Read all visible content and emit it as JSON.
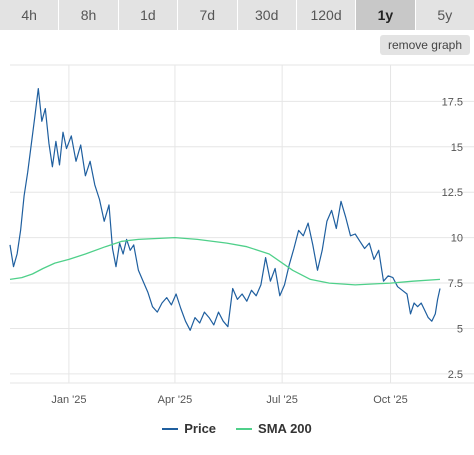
{
  "tabs": [
    {
      "label": "4h",
      "active": false
    },
    {
      "label": "8h",
      "active": false
    },
    {
      "label": "1d",
      "active": false
    },
    {
      "label": "7d",
      "active": false
    },
    {
      "label": "30d",
      "active": false
    },
    {
      "label": "120d",
      "active": false
    },
    {
      "label": "1y",
      "active": true
    },
    {
      "label": "5y",
      "active": false
    }
  ],
  "remove_graph_label": "remove graph",
  "colors": {
    "price": "#1f5f9f",
    "sma": "#4fd08a",
    "grid": "#e6e6e6",
    "axis_text": "#555555"
  },
  "chart_data": {
    "type": "line",
    "title": "",
    "xlabel": "",
    "ylabel": "",
    "y_axis_position": "right",
    "ylim": [
      2.0,
      19.5
    ],
    "y_ticks": [
      2.5,
      5,
      7.5,
      10,
      12.5,
      15,
      17.5
    ],
    "y_tick_labels": [
      "2.5",
      "5",
      "7.5",
      "10",
      "12.5",
      "15",
      "17.5"
    ],
    "x_ticks": [
      {
        "label": "Jan '25",
        "x": "2025-01-01"
      },
      {
        "label": "Apr '25",
        "x": "2025-04-01"
      },
      {
        "label": "Jul '25",
        "x": "2025-07-01"
      },
      {
        "label": "Oct '25",
        "x": "2025-10-01"
      }
    ],
    "x_range": [
      "2024-11-12",
      "2025-11-12"
    ],
    "grid": true,
    "legend_position": "bottom",
    "series": [
      {
        "name": "Price",
        "points": [
          [
            "2024-11-12",
            9.6
          ],
          [
            "2024-11-15",
            8.4
          ],
          [
            "2024-11-18",
            9.1
          ],
          [
            "2024-11-21",
            10.4
          ],
          [
            "2024-11-24",
            12.3
          ],
          [
            "2024-11-27",
            13.6
          ],
          [
            "2024-11-30",
            15.1
          ],
          [
            "2024-12-03",
            16.6
          ],
          [
            "2024-12-06",
            18.2
          ],
          [
            "2024-12-09",
            16.4
          ],
          [
            "2024-12-12",
            17.1
          ],
          [
            "2024-12-15",
            15.2
          ],
          [
            "2024-12-18",
            13.9
          ],
          [
            "2024-12-21",
            15.3
          ],
          [
            "2024-12-24",
            14.0
          ],
          [
            "2024-12-27",
            15.8
          ],
          [
            "2024-12-30",
            14.9
          ],
          [
            "2025-01-03",
            15.6
          ],
          [
            "2025-01-07",
            14.2
          ],
          [
            "2025-01-11",
            15.1
          ],
          [
            "2025-01-15",
            13.4
          ],
          [
            "2025-01-19",
            14.2
          ],
          [
            "2025-01-23",
            12.9
          ],
          [
            "2025-01-27",
            12.1
          ],
          [
            "2025-01-31",
            10.9
          ],
          [
            "2025-02-04",
            11.8
          ],
          [
            "2025-02-07",
            9.4
          ],
          [
            "2025-02-10",
            8.4
          ],
          [
            "2025-02-13",
            9.7
          ],
          [
            "2025-02-16",
            9.1
          ],
          [
            "2025-02-19",
            9.9
          ],
          [
            "2025-02-22",
            9.3
          ],
          [
            "2025-02-25",
            9.6
          ],
          [
            "2025-03-01",
            8.2
          ],
          [
            "2025-03-05",
            7.6
          ],
          [
            "2025-03-09",
            7.0
          ],
          [
            "2025-03-13",
            6.2
          ],
          [
            "2025-03-17",
            5.9
          ],
          [
            "2025-03-21",
            6.4
          ],
          [
            "2025-03-25",
            6.7
          ],
          [
            "2025-03-29",
            6.3
          ],
          [
            "2025-04-02",
            6.9
          ],
          [
            "2025-04-06",
            6.1
          ],
          [
            "2025-04-10",
            5.4
          ],
          [
            "2025-04-14",
            4.9
          ],
          [
            "2025-04-18",
            5.6
          ],
          [
            "2025-04-22",
            5.3
          ],
          [
            "2025-04-26",
            5.9
          ],
          [
            "2025-04-30",
            5.6
          ],
          [
            "2025-05-04",
            5.2
          ],
          [
            "2025-05-08",
            5.9
          ],
          [
            "2025-05-12",
            5.4
          ],
          [
            "2025-05-16",
            5.1
          ],
          [
            "2025-05-20",
            7.2
          ],
          [
            "2025-05-24",
            6.6
          ],
          [
            "2025-05-28",
            6.9
          ],
          [
            "2025-06-01",
            6.5
          ],
          [
            "2025-06-05",
            7.1
          ],
          [
            "2025-06-09",
            6.8
          ],
          [
            "2025-06-13",
            7.4
          ],
          [
            "2025-06-17",
            8.9
          ],
          [
            "2025-06-21",
            7.6
          ],
          [
            "2025-06-25",
            8.3
          ],
          [
            "2025-06-29",
            6.8
          ],
          [
            "2025-07-03",
            7.4
          ],
          [
            "2025-07-07",
            8.5
          ],
          [
            "2025-07-11",
            9.4
          ],
          [
            "2025-07-15",
            10.4
          ],
          [
            "2025-07-19",
            10.1
          ],
          [
            "2025-07-23",
            10.8
          ],
          [
            "2025-07-27",
            9.6
          ],
          [
            "2025-07-31",
            8.2
          ],
          [
            "2025-08-04",
            9.3
          ],
          [
            "2025-08-08",
            10.9
          ],
          [
            "2025-08-12",
            11.5
          ],
          [
            "2025-08-16",
            10.5
          ],
          [
            "2025-08-20",
            12.0
          ],
          [
            "2025-08-24",
            11.1
          ],
          [
            "2025-08-28",
            10.1
          ],
          [
            "2025-09-01",
            10.2
          ],
          [
            "2025-09-05",
            9.8
          ],
          [
            "2025-09-09",
            9.4
          ],
          [
            "2025-09-13",
            9.7
          ],
          [
            "2025-09-17",
            8.8
          ],
          [
            "2025-09-21",
            9.3
          ],
          [
            "2025-09-25",
            7.6
          ],
          [
            "2025-09-29",
            7.9
          ],
          [
            "2025-10-03",
            7.8
          ],
          [
            "2025-10-07",
            7.3
          ],
          [
            "2025-10-11",
            7.1
          ],
          [
            "2025-10-15",
            6.9
          ],
          [
            "2025-10-18",
            5.8
          ],
          [
            "2025-10-21",
            6.4
          ],
          [
            "2025-10-24",
            6.2
          ],
          [
            "2025-10-27",
            6.4
          ],
          [
            "2025-10-30",
            6.0
          ],
          [
            "2025-11-02",
            5.6
          ],
          [
            "2025-11-05",
            5.4
          ],
          [
            "2025-11-08",
            5.8
          ],
          [
            "2025-11-10",
            6.6
          ],
          [
            "2025-11-12",
            7.2
          ]
        ]
      },
      {
        "name": "SMA 200",
        "points": [
          [
            "2024-11-12",
            7.7
          ],
          [
            "2024-11-22",
            7.8
          ],
          [
            "2024-12-01",
            8.0
          ],
          [
            "2024-12-10",
            8.3
          ],
          [
            "2024-12-20",
            8.6
          ],
          [
            "2025-01-01",
            8.8
          ],
          [
            "2025-01-15",
            9.1
          ],
          [
            "2025-02-01",
            9.5
          ],
          [
            "2025-02-15",
            9.8
          ],
          [
            "2025-03-01",
            9.9
          ],
          [
            "2025-04-01",
            10.0
          ],
          [
            "2025-04-20",
            9.9
          ],
          [
            "2025-05-15",
            9.7
          ],
          [
            "2025-06-01",
            9.5
          ],
          [
            "2025-06-20",
            9.1
          ],
          [
            "2025-07-10",
            8.2
          ],
          [
            "2025-07-25",
            7.7
          ],
          [
            "2025-08-10",
            7.5
          ],
          [
            "2025-09-01",
            7.4
          ],
          [
            "2025-10-01",
            7.5
          ],
          [
            "2025-10-20",
            7.6
          ],
          [
            "2025-11-12",
            7.7
          ]
        ]
      }
    ]
  }
}
